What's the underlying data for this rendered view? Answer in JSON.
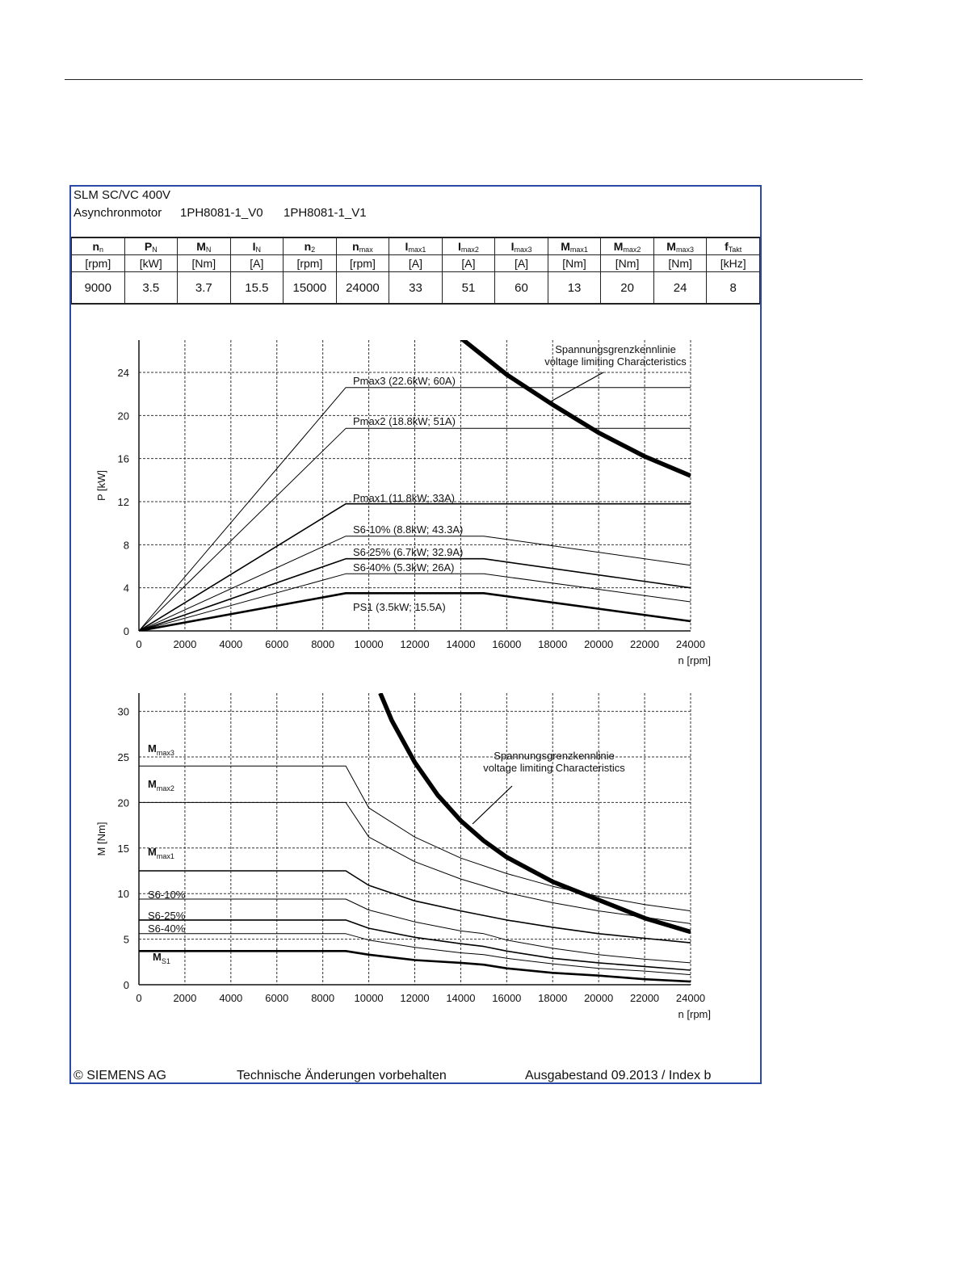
{
  "header": {
    "line1": "SLM SC/VC 400V",
    "line2_prefix": "Asynchronmotor",
    "model_v0": "1PH8081-1_V0",
    "model_v1": "1PH8081-1_V1"
  },
  "table": {
    "columns": [
      {
        "sym": "n",
        "sub": "n",
        "unit": "[rpm]",
        "value": "9000"
      },
      {
        "sym": "P",
        "sub": "N",
        "unit": "[kW]",
        "value": "3.5"
      },
      {
        "sym": "M",
        "sub": "N",
        "unit": "[Nm]",
        "value": "3.7"
      },
      {
        "sym": "I",
        "sub": "N",
        "unit": "[A]",
        "value": "15.5"
      },
      {
        "sym": "n",
        "sub": "2",
        "unit": "[rpm]",
        "value": "15000"
      },
      {
        "sym": "n",
        "sub": "max",
        "unit": "[rpm]",
        "value": "24000"
      },
      {
        "sym": "I",
        "sub": "max1",
        "unit": "[A]",
        "value": "33"
      },
      {
        "sym": "I",
        "sub": "max2",
        "unit": "[A]",
        "value": "51"
      },
      {
        "sym": "I",
        "sub": "max3",
        "unit": "[A]",
        "value": "60"
      },
      {
        "sym": "M",
        "sub": "max1",
        "unit": "[Nm]",
        "value": "13"
      },
      {
        "sym": "M",
        "sub": "max2",
        "unit": "[Nm]",
        "value": "20"
      },
      {
        "sym": "M",
        "sub": "max3",
        "unit": "[Nm]",
        "value": "24"
      },
      {
        "sym": "f",
        "sub": "Takt",
        "unit": "[kHz]",
        "value": "8"
      }
    ]
  },
  "footer": {
    "copyright": "© SIEMENS AG",
    "notice": "Technische Änderungen vorbehalten",
    "edition": "Ausgabestand 09.2013 / Index b"
  },
  "chart_data": [
    {
      "type": "line",
      "xlabel": "n [rpm]",
      "ylabel": "P [kW]",
      "xlim": [
        0,
        24000
      ],
      "ylim": [
        0,
        27
      ],
      "xticks": [
        0,
        2000,
        4000,
        6000,
        8000,
        10000,
        12000,
        14000,
        16000,
        18000,
        20000,
        22000,
        24000
      ],
      "yticks": [
        0,
        4,
        8,
        12,
        16,
        20,
        24
      ],
      "grid": true,
      "voltage_label_1": "Spannungsgrenzkennlinie",
      "voltage_label_2": "voltage limiting  Characteristics",
      "series": [
        {
          "name": "Pmax3  (22.6kW; 60A)",
          "x": [
            0,
            9000,
            24000
          ],
          "y": [
            0,
            22.6,
            22.6
          ],
          "weight": "thin"
        },
        {
          "name": "Pmax2  (18.8kW; 51A)",
          "x": [
            0,
            9000,
            24000
          ],
          "y": [
            0,
            18.8,
            18.8
          ],
          "weight": "thin"
        },
        {
          "name": "Pmax1  (11.8kW; 33A)",
          "x": [
            0,
            9000,
            24000
          ],
          "y": [
            0,
            11.8,
            11.8
          ],
          "weight": "medium"
        },
        {
          "name": "S6-10% (8.8kW; 43.3A)",
          "x": [
            0,
            9000,
            15000,
            24000
          ],
          "y": [
            0,
            8.8,
            8.8,
            6.1
          ],
          "weight": "thin"
        },
        {
          "name": "S6-25% (6.7kW; 32.9A)",
          "x": [
            0,
            9000,
            15000,
            24000
          ],
          "y": [
            0,
            6.7,
            6.7,
            4.0
          ],
          "weight": "medium"
        },
        {
          "name": "S6-40% (5.3kW; 26A)",
          "x": [
            0,
            9000,
            15000,
            24000
          ],
          "y": [
            0,
            5.3,
            5.3,
            2.7
          ],
          "weight": "thin"
        },
        {
          "name": "PS1 (3.5kW; 15.5A)",
          "x": [
            0,
            9000,
            15000,
            24000
          ],
          "y": [
            0,
            3.5,
            3.5,
            0.9
          ],
          "weight": "bold"
        },
        {
          "name": "voltage limiting",
          "x": [
            14000,
            16000,
            18000,
            20000,
            22000,
            24000
          ],
          "y": [
            27.2,
            23.8,
            21.0,
            18.4,
            16.2,
            14.4
          ],
          "weight": "heavy"
        }
      ]
    },
    {
      "type": "line",
      "xlabel": "n [rpm]",
      "ylabel": "M [Nm]",
      "xlim": [
        0,
        24000
      ],
      "ylim": [
        0,
        32
      ],
      "xticks": [
        0,
        2000,
        4000,
        6000,
        8000,
        10000,
        12000,
        14000,
        16000,
        18000,
        20000,
        22000,
        24000
      ],
      "yticks": [
        0,
        5,
        10,
        15,
        20,
        25,
        30
      ],
      "grid": true,
      "voltage_label_1": "Spannungsgrenzkennlinie",
      "voltage_label_2": "voltage limiting  Characteristics",
      "labels": {
        "mmax3": {
          "main": "M",
          "sub": "max3"
        },
        "mmax2": {
          "main": "M",
          "sub": "max2"
        },
        "mmax1": {
          "main": "M",
          "sub": "max1"
        },
        "s6_10": "S6-10%",
        "s6_25": "S6-25%",
        "s6_40": "S6-40%",
        "ms1": {
          "main": "M",
          "sub": "S1"
        }
      },
      "series": [
        {
          "name": "Mmax3",
          "x": [
            0,
            9000,
            10000,
            12000,
            14000,
            16000,
            18000,
            20000,
            22000,
            24000
          ],
          "y": [
            24,
            24,
            19.4,
            16.2,
            13.9,
            12.2,
            10.8,
            9.7,
            8.8,
            8.1
          ],
          "weight": "thin"
        },
        {
          "name": "Mmax2",
          "x": [
            0,
            9000,
            10000,
            12000,
            14000,
            16000,
            18000,
            20000,
            22000,
            24000
          ],
          "y": [
            20,
            20,
            16.2,
            13.5,
            11.6,
            10.1,
            9.0,
            8.1,
            7.4,
            6.7
          ],
          "weight": "thin"
        },
        {
          "name": "Mmax1",
          "x": [
            0,
            9000,
            10000,
            12000,
            14000,
            16000,
            18000,
            20000,
            22000,
            24000
          ],
          "y": [
            12.5,
            12.5,
            10.9,
            9.2,
            8.1,
            7.1,
            6.3,
            5.6,
            5.1,
            4.6
          ],
          "weight": "medium"
        },
        {
          "name": "S6-10%",
          "x": [
            0,
            9000,
            10000,
            12000,
            14000,
            15000,
            16000,
            18000,
            20000,
            22000,
            24000
          ],
          "y": [
            9.4,
            9.4,
            8.2,
            6.9,
            5.9,
            5.6,
            4.9,
            4.0,
            3.3,
            2.8,
            2.4
          ],
          "weight": "thin"
        },
        {
          "name": "S6-25%",
          "x": [
            0,
            9000,
            10000,
            12000,
            14000,
            15000,
            16000,
            18000,
            20000,
            22000,
            24000
          ],
          "y": [
            7.1,
            7.1,
            6.2,
            5.2,
            4.5,
            4.2,
            3.7,
            2.9,
            2.4,
            2.0,
            1.6
          ],
          "weight": "medium"
        },
        {
          "name": "S6-40%",
          "x": [
            0,
            9000,
            10000,
            12000,
            14000,
            15000,
            16000,
            18000,
            20000,
            22000,
            24000
          ],
          "y": [
            5.6,
            5.6,
            4.9,
            4.1,
            3.5,
            3.3,
            2.9,
            2.3,
            1.8,
            1.5,
            1.1
          ],
          "weight": "thin"
        },
        {
          "name": "MS1",
          "x": [
            0,
            9000,
            10000,
            12000,
            14000,
            15000,
            16000,
            18000,
            20000,
            22000,
            24000
          ],
          "y": [
            3.7,
            3.7,
            3.3,
            2.7,
            2.4,
            2.2,
            1.8,
            1.3,
            1.0,
            0.6,
            0.35
          ],
          "weight": "bold"
        },
        {
          "name": "voltage limiting",
          "x": [
            10500,
            11000,
            12000,
            13000,
            14000,
            15000,
            16000,
            18000,
            20000,
            22000,
            24000
          ],
          "y": [
            32,
            29.0,
            24.4,
            20.8,
            18.0,
            15.8,
            14.0,
            11.3,
            9.3,
            7.3,
            5.8
          ],
          "weight": "heavy"
        }
      ]
    }
  ]
}
